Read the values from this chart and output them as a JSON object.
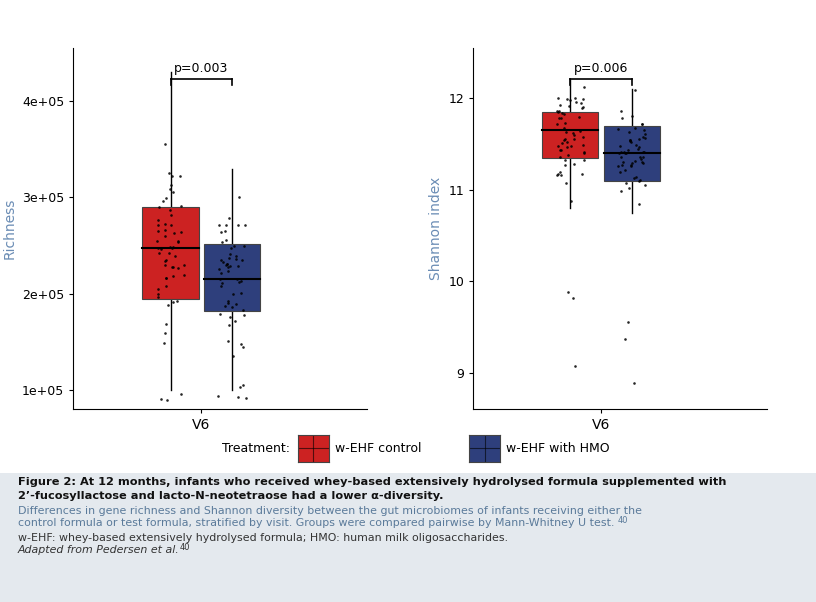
{
  "plot1": {
    "ylabel": "Richness",
    "xlabel": "V6",
    "ylim": [
      80000,
      455000
    ],
    "yticks": [
      100000,
      200000,
      300000,
      400000
    ],
    "ytick_labels": [
      "1e+05",
      "2e+05",
      "3e+05",
      "4e+05"
    ],
    "pvalue": "p=0.003",
    "red_box": {
      "q1": 195000,
      "median": 248000,
      "q3": 290000,
      "whisker_low": 100000,
      "whisker_high": 430000
    },
    "blue_box": {
      "q1": 182000,
      "median": 215000,
      "q3": 252000,
      "whisker_low": 100000,
      "whisker_high": 330000
    }
  },
  "plot2": {
    "ylabel": "Shannon index",
    "xlabel": "V6",
    "ylim": [
      8.6,
      12.55
    ],
    "yticks": [
      9,
      10,
      11,
      12
    ],
    "ytick_labels": [
      "9",
      "10",
      "11",
      "12"
    ],
    "pvalue": "p=0.006",
    "red_box": {
      "q1": 11.35,
      "median": 11.65,
      "q3": 11.85,
      "whisker_low": 10.8,
      "whisker_high": 12.2
    },
    "blue_box": {
      "q1": 11.1,
      "median": 11.4,
      "q3": 11.7,
      "whisker_low": 10.75,
      "whisker_high": 12.1
    }
  },
  "red_color": "#cc2222",
  "blue_color": "#2e3f7c",
  "red_label": "w-EHF control",
  "blue_label": "w-EHF with HMO",
  "treatment_label": "Treatment:",
  "axis_label_color": "#6b8db5",
  "tick_label_color": "#c87941",
  "background_color": "#ffffff",
  "caption_bg_color": "#e4e9ee",
  "caption_title_line1": "Figure 2: At 12 months, infants who received whey-based extensively hydrolysed formula supplemented with",
  "caption_title_line2": "2’-fucosyllactose and lacto-N-neotetraose had a lower α-diversity.",
  "caption_body1_line1": "Differences in gene richness and Shannon diversity between the gut microbiomes of infants receiving either the",
  "caption_body1_line2": "control formula or test formula, stratified by visit. Groups were compared pairwise by Mann-Whitney U test.",
  "caption_body1_super": "40",
  "caption_body2": "w-EHF: whey-based extensively hydrolysed formula; HMO: human milk oligosaccharides.",
  "caption_body3": "Adapted from Pedersen et al.",
  "caption_body3_super": "40"
}
